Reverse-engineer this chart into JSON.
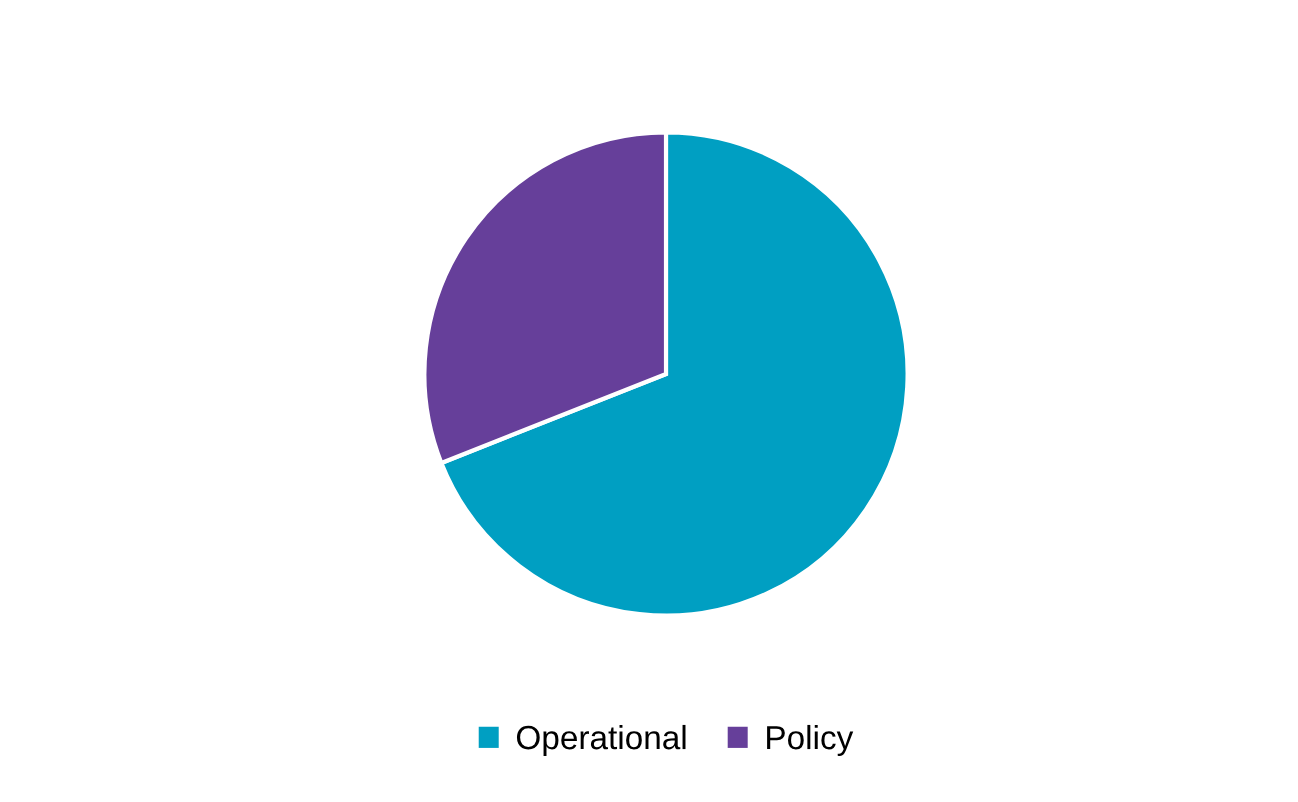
{
  "chart_data": {
    "type": "pie",
    "categories": [
      "Operational",
      "Policy"
    ],
    "values": [
      69,
      31
    ],
    "colors": [
      "#009fc2",
      "#663f9a"
    ],
    "legend": "bottom"
  }
}
